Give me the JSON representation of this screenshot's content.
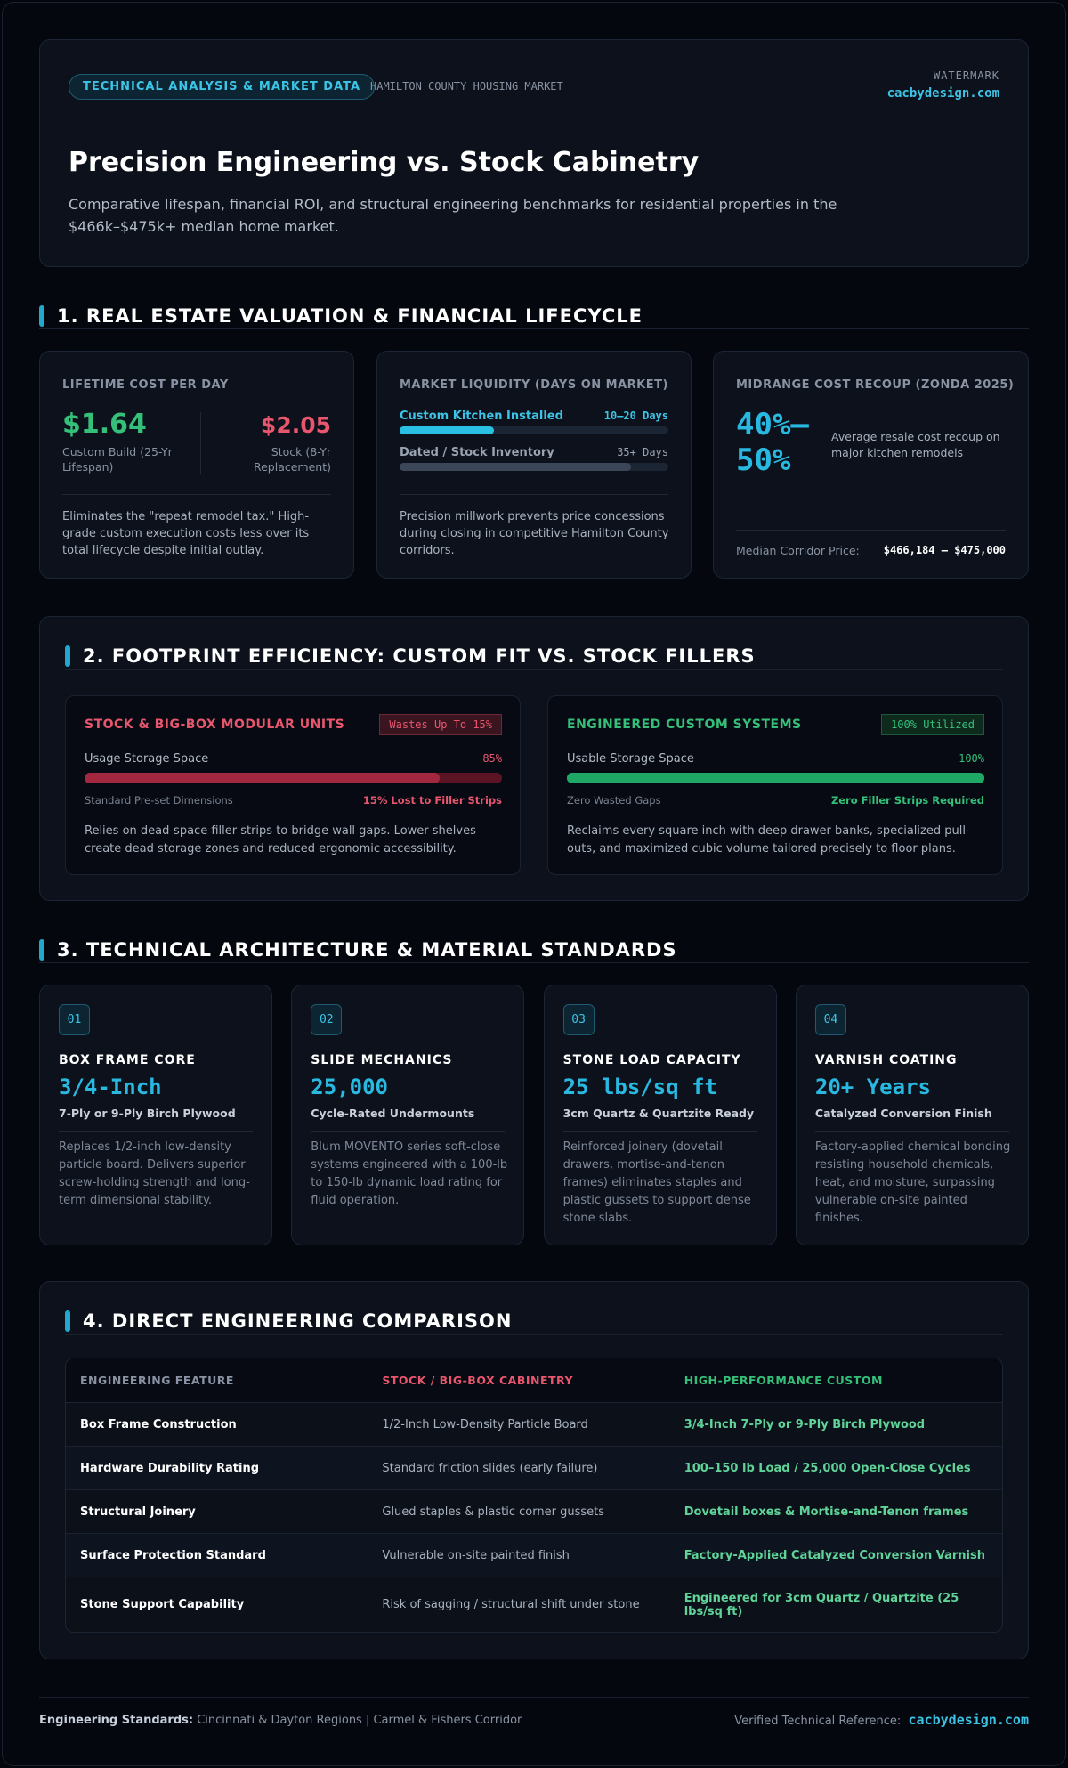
{
  "header": {
    "badge": "TECHNICAL ANALYSIS & MARKET DATA",
    "market": "HAMILTON COUNTY HOUSING MARKET",
    "watermark_label": "WATERMARK",
    "watermark_site": "cacbydesign.com",
    "title": "Precision Engineering vs. Stock Cabinetry",
    "subtitle": "Comparative lifespan, financial ROI, and structural engineering benchmarks for residential properties in the $466k–$475k+ median home market."
  },
  "section1": {
    "heading": "1. REAL ESTATE VALUATION & FINANCIAL LIFECYCLE",
    "cost": {
      "label": "LIFETIME COST PER DAY",
      "custom_value": "$1.64",
      "custom_caption": "Custom Build (25-Yr Lifespan)",
      "stock_value": "$2.05",
      "stock_caption": "Stock (8-Yr Replacement)",
      "note": "Eliminates the \"repeat remodel tax.\" High-grade custom execution costs less over its total lifecycle despite initial outlay."
    },
    "liquidity": {
      "label": "MARKET LIQUIDITY (DAYS ON MARKET)",
      "custom_name": "Custom Kitchen Installed",
      "custom_days": "10–20 Days",
      "stock_name": "Dated / Stock Inventory",
      "stock_days": "35+ Days",
      "note": "Precision millwork prevents price concessions during closing in competitive Hamilton County corridors."
    },
    "recoup": {
      "label": "MIDRANGE COST RECOUP (ZONDA 2025)",
      "value": "40%–50%",
      "caption": "Average resale cost recoup on major kitchen remodels",
      "price_label": "Median Corridor Price:",
      "price": "$466,184 – $475,000"
    }
  },
  "section2": {
    "heading": "2. FOOTPRINT EFFICIENCY: CUSTOM FIT VS. STOCK FILLERS",
    "stock": {
      "title": "STOCK & BIG-BOX MODULAR UNITS",
      "tag": "Wastes Up To 15%",
      "metric": "Usage Storage Space",
      "usage": {
        "value": 85,
        "label": "85%"
      },
      "left_note": "Standard Pre-set Dimensions",
      "right_note": "15% Lost to Filler Strips",
      "description": "Relies on dead-space filler strips to bridge wall gaps. Lower shelves create dead storage zones and reduced ergonomic accessibility."
    },
    "custom": {
      "title": "ENGINEERED CUSTOM SYSTEMS",
      "tag": "100% Utilized",
      "metric": "Usable Storage Space",
      "usage": {
        "value": 100,
        "label": "100%"
      },
      "left_note": "Zero Wasted Gaps",
      "right_note": "Zero Filler Strips Required",
      "description": "Reclaims every square inch with deep drawer banks, specialized pull-outs, and maximized cubic volume tailored precisely to floor plans."
    }
  },
  "section3": {
    "heading": "3. TECHNICAL ARCHITECTURE & MATERIAL STANDARDS",
    "cards": [
      {
        "number": "01",
        "title": "BOX FRAME CORE",
        "value": "3/4-Inch",
        "subtitle": "7-Ply or 9-Ply Birch Plywood",
        "text": "Replaces 1/2-inch low-density particle board. Delivers superior screw-holding strength and long-term dimensional stability."
      },
      {
        "number": "02",
        "title": "SLIDE MECHANICS",
        "value": "25,000",
        "subtitle": "Cycle-Rated Undermounts",
        "text": "Blum MOVENTO series soft-close systems engineered with a 100-lb to 150-lb dynamic load rating for fluid operation."
      },
      {
        "number": "03",
        "title": "STONE LOAD CAPACITY",
        "value": "25 lbs/sq ft",
        "subtitle": "3cm Quartz & Quartzite Ready",
        "text": "Reinforced joinery (dovetail drawers, mortise-and-tenon frames) eliminates staples and plastic gussets to support dense stone slabs."
      },
      {
        "number": "04",
        "title": "VARNISH COATING",
        "value": "20+ Years",
        "subtitle": "Catalyzed Conversion Finish",
        "text": "Factory-applied chemical bonding resisting household chemicals, heat, and moisture, surpassing vulnerable on-site painted finishes."
      }
    ]
  },
  "section4": {
    "heading": "4. DIRECT ENGINEERING COMPARISON",
    "table": {
      "columns": [
        "ENGINEERING FEATURE",
        "STOCK / BIG-BOX CABINETRY",
        "HIGH-PERFORMANCE CUSTOM"
      ],
      "rows": [
        [
          "Box Frame Construction",
          "1/2-Inch Low-Density Particle Board",
          "3/4-Inch 7-Ply or 9-Ply Birch Plywood"
        ],
        [
          "Hardware Durability Rating",
          "Standard friction slides (early failure)",
          "100–150 lb Load / 25,000 Open-Close Cycles"
        ],
        [
          "Structural Joinery",
          "Glued staples & plastic corner gussets",
          "Dovetail boxes & Mortise-and-Tenon frames"
        ],
        [
          "Surface Protection Standard",
          "Vulnerable on-site painted finish",
          "Factory-Applied Catalyzed Conversion Varnish"
        ],
        [
          "Stone Support Capability",
          "Risk of sagging / structural shift under stone",
          "Engineered for 3cm Quartz / Quartzite (25 lbs/sq ft)"
        ]
      ]
    }
  },
  "footer": {
    "standards_label": "Engineering Standards:",
    "standards": "Cincinnati & Dayton Regions | Carmel & Fishers Corridor",
    "reference_label": "Verified Technical Reference:",
    "site": "cacbydesign.com"
  }
}
